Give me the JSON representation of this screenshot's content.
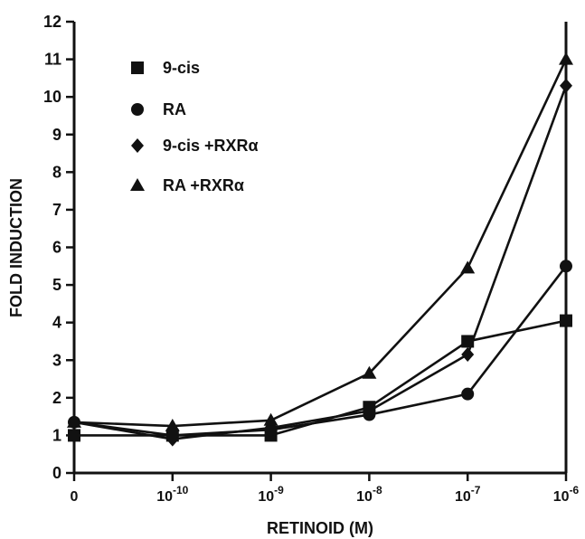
{
  "chart_data": {
    "type": "line",
    "xlabel": "RETINOID (M)",
    "ylabel": "FOLD INDUCTION",
    "x_ticks": [
      {
        "base": "0",
        "exp": ""
      },
      {
        "base": "10",
        "exp": "-10"
      },
      {
        "base": "10",
        "exp": "-9"
      },
      {
        "base": "10",
        "exp": "-8"
      },
      {
        "base": "10",
        "exp": "-7"
      },
      {
        "base": "10",
        "exp": "-6"
      }
    ],
    "y_ticks": [
      "0",
      "1",
      "2",
      "3",
      "4",
      "5",
      "6",
      "7",
      "8",
      "9",
      "10",
      "11",
      "12"
    ],
    "ylim": [
      0,
      12
    ],
    "legend_placement": "top-left",
    "series": [
      {
        "name": "9-cis",
        "marker": "square",
        "values": [
          1.0,
          1.0,
          1.0,
          1.75,
          3.5,
          4.05
        ]
      },
      {
        "name": "RA",
        "marker": "circle",
        "values": [
          1.35,
          1.0,
          1.15,
          1.55,
          2.1,
          5.5
        ]
      },
      {
        "name": "9-cis +RXRα",
        "marker": "diamond",
        "values": [
          1.35,
          0.9,
          1.2,
          1.65,
          3.15,
          10.3
        ]
      },
      {
        "name": "RA +RXRα",
        "marker": "triangle",
        "values": [
          1.35,
          1.25,
          1.4,
          2.65,
          5.45,
          11.0
        ]
      }
    ]
  }
}
